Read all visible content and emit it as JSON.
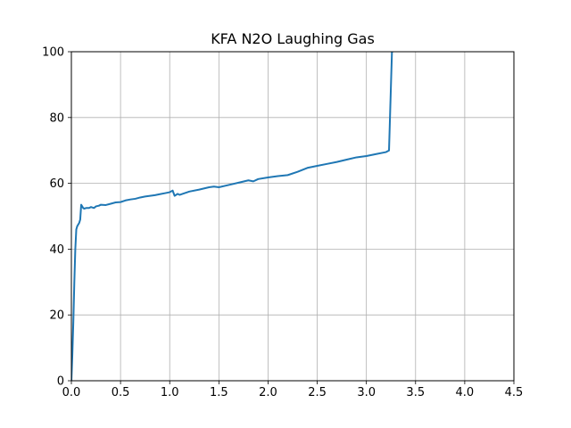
{
  "chart_data": {
    "type": "line",
    "title": "KFA N2O Laughing Gas",
    "xlabel": "",
    "ylabel": "",
    "xlim": [
      0.0,
      4.5
    ],
    "ylim": [
      0,
      100
    ],
    "grid": true,
    "x_ticks": [
      "0.0",
      "0.5",
      "1.0",
      "1.5",
      "2.0",
      "2.5",
      "3.0",
      "3.5",
      "4.0",
      "4.5"
    ],
    "y_ticks": [
      "0",
      "20",
      "40",
      "60",
      "80",
      "100"
    ],
    "line_color": "#1f77b4",
    "series": [
      {
        "x": [
          0.0,
          0.01,
          0.02,
          0.03,
          0.04,
          0.05,
          0.06,
          0.07,
          0.08,
          0.09,
          0.1,
          0.11,
          0.12,
          0.13,
          0.15,
          0.18,
          0.2,
          0.23,
          0.25,
          0.28,
          0.3,
          0.35,
          0.4,
          0.45,
          0.5,
          0.55,
          0.6,
          0.65,
          0.7,
          0.75,
          0.8,
          0.85,
          0.9,
          0.95,
          1.0,
          1.03,
          1.05,
          1.08,
          1.1,
          1.15,
          1.2,
          1.3,
          1.4,
          1.45,
          1.5,
          1.6,
          1.7,
          1.8,
          1.85,
          1.9,
          2.0,
          2.1,
          2.2,
          2.3,
          2.4,
          2.5,
          2.6,
          2.7,
          2.8,
          2.9,
          3.0,
          3.1,
          3.2,
          3.23,
          3.24,
          3.25,
          3.26,
          3.27
        ],
        "y": [
          0,
          8,
          18,
          30,
          40,
          46,
          47,
          47.5,
          48,
          49,
          53.5,
          53,
          52.5,
          52.3,
          52.5,
          52.5,
          52.8,
          52.5,
          53,
          53.2,
          53.5,
          53.4,
          53.8,
          54.2,
          54.3,
          54.8,
          55.1,
          55.3,
          55.7,
          56.0,
          56.2,
          56.4,
          56.7,
          57.0,
          57.3,
          57.8,
          56.2,
          56.8,
          56.5,
          57.0,
          57.5,
          58.1,
          58.8,
          59.0,
          58.8,
          59.5,
          60.2,
          60.9,
          60.6,
          61.3,
          61.8,
          62.2,
          62.5,
          63.5,
          64.7,
          65.3,
          65.9,
          66.5,
          67.2,
          67.9,
          68.3,
          68.9,
          69.5,
          70.0,
          80,
          90,
          100,
          100
        ]
      }
    ]
  }
}
